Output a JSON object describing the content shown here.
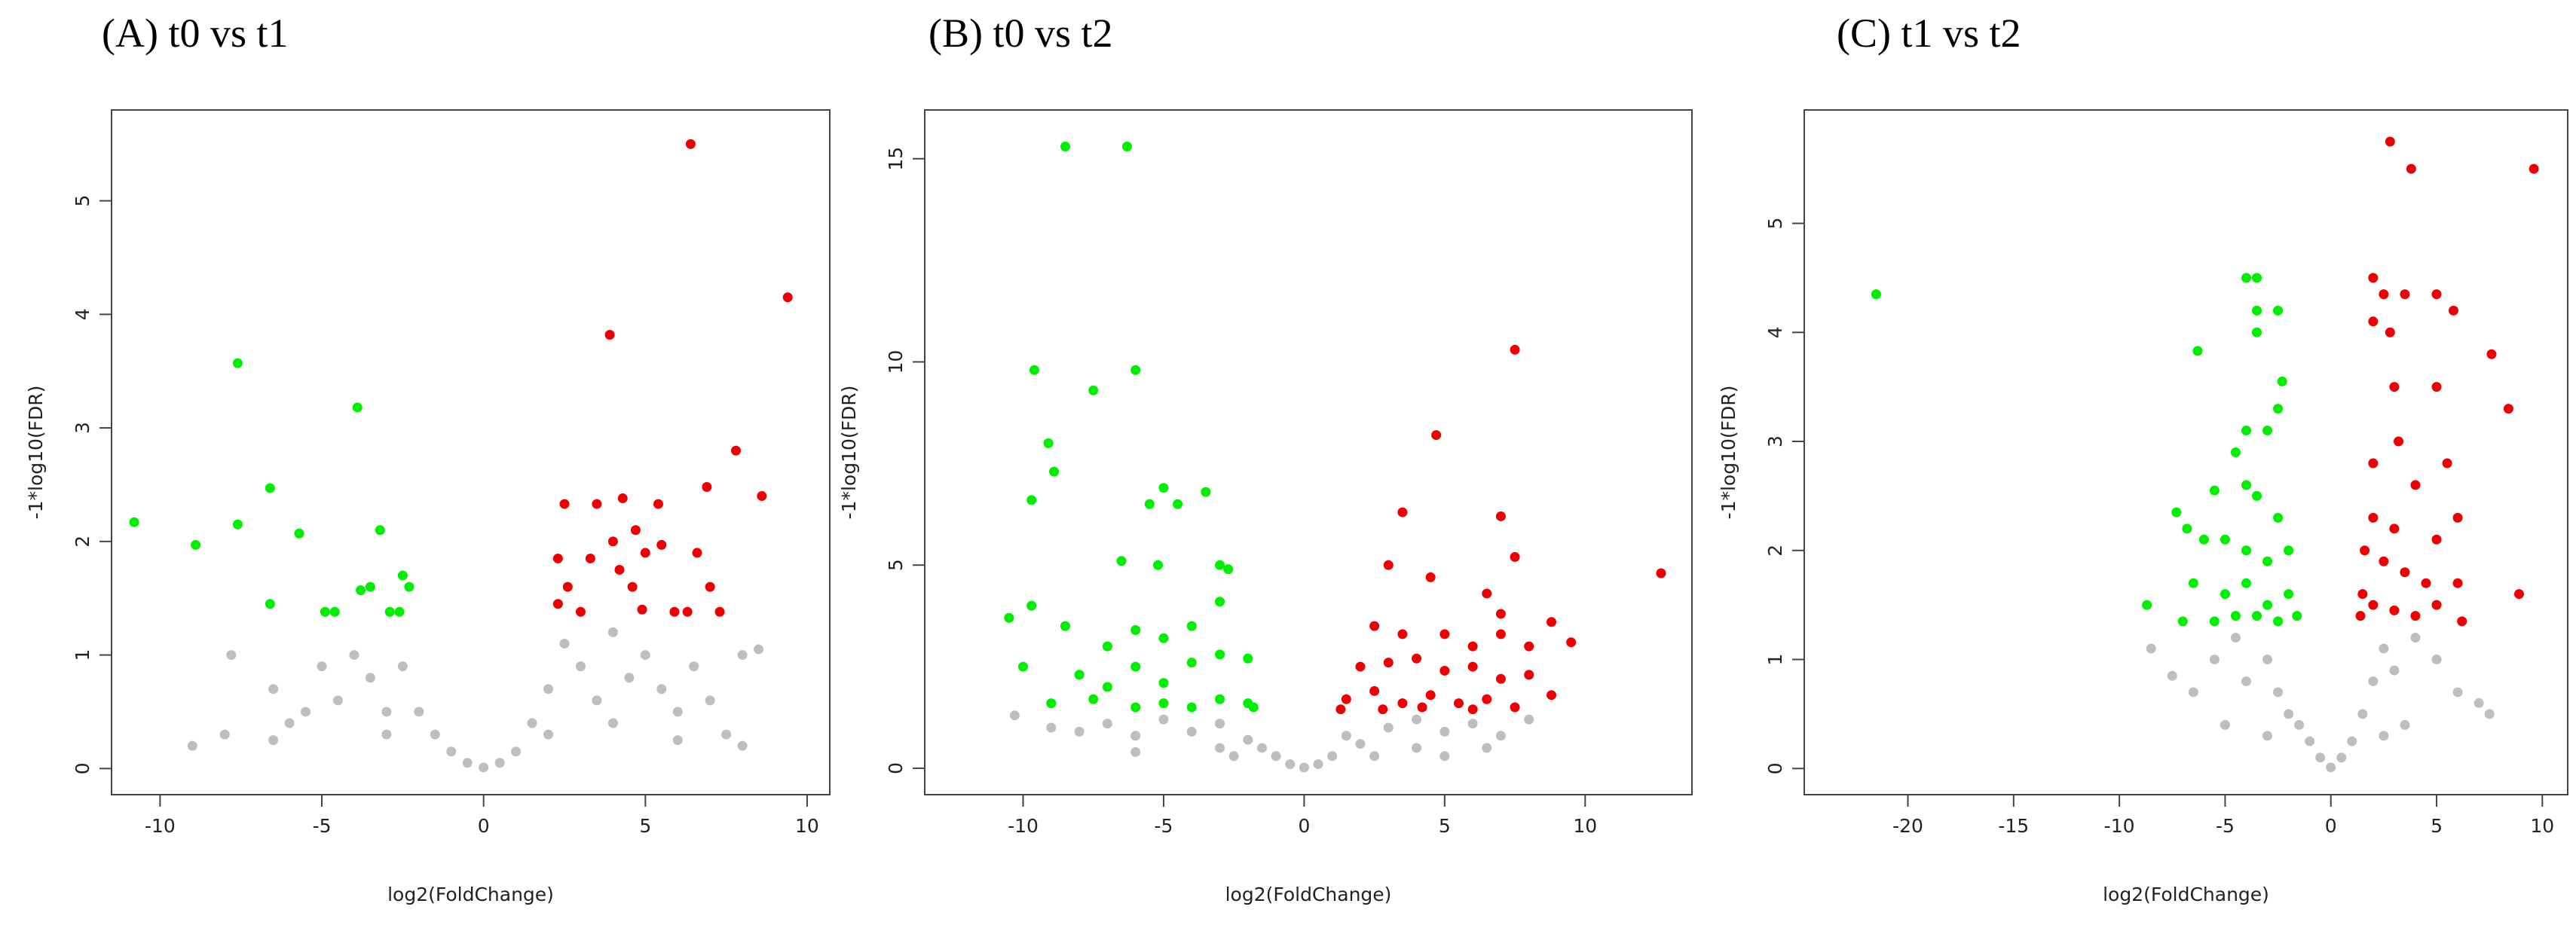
{
  "chart_data": [
    {
      "type": "scatter",
      "title": "(A) t0 vs t1",
      "xlabel": "log2(FoldChange)",
      "ylabel": "-1*log10(FDR)",
      "xlim": [
        -11.5,
        10.7
      ],
      "ylim": [
        -0.23,
        5.8
      ],
      "xticks": [
        -10,
        -5,
        0,
        5,
        10
      ],
      "yticks": [
        0,
        1,
        2,
        3,
        4,
        5
      ],
      "series": [
        {
          "color": "#bebebe",
          "x": [
            -7.8,
            -6.5,
            -6,
            -5,
            -4.5,
            -4,
            -3.5,
            -3,
            -2.5,
            -2,
            -1.5,
            -1,
            -0.5,
            0,
            0.5,
            1,
            1.5,
            2,
            2.5,
            3,
            3.5,
            4,
            4.5,
            5,
            5.5,
            6,
            6.5,
            7,
            7.5,
            8,
            8.5,
            -8,
            -9,
            -6.5,
            -5.5,
            -3,
            2,
            4,
            6,
            8
          ],
          "values": [
            1.0,
            0.7,
            0.4,
            0.9,
            0.6,
            1.0,
            0.8,
            0.5,
            0.9,
            0.5,
            0.3,
            0.15,
            0.05,
            0.01,
            0.05,
            0.15,
            0.4,
            0.7,
            1.1,
            0.9,
            0.6,
            1.2,
            0.8,
            1.0,
            0.7,
            0.5,
            0.9,
            0.6,
            0.3,
            1.0,
            1.05,
            0.3,
            0.2,
            0.25,
            0.5,
            0.3,
            0.3,
            0.4,
            0.25,
            0.2
          ]
        },
        {
          "color": "#00ee00",
          "x": [
            -10.8,
            -8.9,
            -7.6,
            -7.6,
            -6.6,
            -6.6,
            -5.7,
            -4.9,
            -4.6,
            -3.9,
            -3.8,
            -3.5,
            -3.2,
            -2.9,
            -2.6,
            -2.5,
            -2.3
          ],
          "values": [
            2.17,
            1.97,
            3.57,
            2.15,
            2.47,
            1.45,
            2.07,
            1.38,
            1.38,
            3.18,
            1.57,
            1.6,
            2.1,
            1.38,
            1.38,
            1.7,
            1.6
          ]
        },
        {
          "color": "#ee0000",
          "x": [
            6.4,
            9.4,
            3.9,
            7.8,
            2.5,
            3.5,
            4.3,
            5.4,
            6.9,
            8.6,
            2.3,
            3.3,
            4.0,
            4.7,
            5.0,
            5.5,
            6.6,
            2.3,
            2.6,
            3.0,
            4.2,
            4.6,
            4.9,
            5.9,
            6.3,
            7.0,
            7.3
          ],
          "values": [
            5.5,
            4.15,
            3.82,
            2.8,
            2.33,
            2.33,
            2.38,
            2.33,
            2.48,
            2.4,
            1.85,
            1.85,
            2.0,
            2.1,
            1.9,
            1.97,
            1.9,
            1.45,
            1.6,
            1.38,
            1.75,
            1.6,
            1.4,
            1.38,
            1.38,
            1.6,
            1.38
          ]
        }
      ]
    },
    {
      "type": "scatter",
      "title": "(B) t0 vs t2",
      "xlabel": "log2(FoldChange)",
      "ylabel": "-1*log10(FDR)",
      "xlim": [
        -13.5,
        13.8
      ],
      "ylim": [
        -0.65,
        16.2
      ],
      "xticks": [
        -10,
        -5,
        0,
        5,
        10
      ],
      "yticks": [
        0,
        5,
        10,
        15
      ],
      "series": [
        {
          "color": "#bebebe",
          "x": [
            -10.3,
            -9,
            -8,
            -7,
            -6,
            -5,
            -4,
            -3,
            -2,
            -1.5,
            -1,
            -0.5,
            0,
            0.5,
            1,
            1.5,
            2,
            3,
            4,
            5,
            6,
            7,
            8,
            6.5,
            4,
            -6,
            -3,
            2.5,
            -2.5,
            5
          ],
          "values": [
            1.3,
            1.0,
            0.9,
            1.1,
            0.8,
            1.2,
            0.9,
            1.1,
            0.7,
            0.5,
            0.3,
            0.1,
            0.02,
            0.1,
            0.3,
            0.8,
            0.6,
            1.0,
            1.2,
            0.9,
            1.1,
            0.8,
            1.2,
            0.5,
            0.5,
            0.4,
            0.5,
            0.3,
            0.3,
            0.3
          ]
        },
        {
          "color": "#00ee00",
          "x": [
            -8.5,
            -6.3,
            -9.6,
            -6,
            -7.5,
            -9.1,
            -8.9,
            -9.7,
            -5,
            -5.5,
            -4.5,
            -3.5,
            -6.5,
            -5.2,
            -3,
            -2.7,
            -10.5,
            -9.7,
            -8.5,
            -7,
            -6,
            -5,
            -4,
            -3,
            -10,
            -8,
            -7,
            -6,
            -5,
            -4,
            -3,
            -2,
            -9,
            -7.5,
            -6,
            -5,
            -4,
            -3,
            -2,
            -1.8
          ],
          "values": [
            15.3,
            15.3,
            9.8,
            9.8,
            9.3,
            8,
            7.3,
            6.6,
            6.9,
            6.5,
            6.5,
            6.8,
            5.1,
            5.0,
            5.0,
            4.9,
            3.7,
            4.0,
            3.5,
            3.0,
            3.4,
            3.2,
            3.5,
            4.1,
            2.5,
            2.3,
            2.0,
            2.5,
            2.1,
            2.6,
            2.8,
            2.7,
            1.6,
            1.7,
            1.5,
            1.6,
            1.5,
            1.7,
            1.6,
            1.5
          ]
        },
        {
          "color": "#ee0000",
          "x": [
            7.5,
            4.7,
            12.7,
            3.5,
            7,
            7.5,
            3,
            4.5,
            6.5,
            7,
            8.8,
            9.5,
            2.5,
            3.5,
            5,
            6,
            7,
            8,
            2,
            3,
            4,
            5,
            6,
            7,
            8,
            8.8,
            1.5,
            2.5,
            3.5,
            4.5,
            5.5,
            6.5,
            7.5,
            1.3,
            2.8,
            4.2,
            6
          ],
          "values": [
            10.3,
            8.2,
            4.8,
            6.3,
            6.2,
            5.2,
            5.0,
            4.7,
            4.3,
            3.8,
            3.6,
            3.1,
            3.5,
            3.3,
            3.3,
            3.0,
            3.3,
            3.0,
            2.5,
            2.6,
            2.7,
            2.4,
            2.5,
            2.2,
            2.3,
            1.8,
            1.7,
            1.9,
            1.6,
            1.8,
            1.6,
            1.7,
            1.5,
            1.45,
            1.45,
            1.5,
            1.45
          ]
        }
      ]
    },
    {
      "type": "scatter",
      "title": "(C) t1 vs t2",
      "xlabel": "log2(FoldChange)",
      "ylabel": "-1*log10(FDR)",
      "xlim": [
        -24.9,
        11.2
      ],
      "ylim": [
        -0.24,
        6.04
      ],
      "xticks": [
        -20,
        -15,
        -10,
        -5,
        0,
        5,
        10
      ],
      "yticks": [
        0,
        1,
        2,
        3,
        4,
        5
      ],
      "series": [
        {
          "color": "#bebebe",
          "x": [
            -8.5,
            -7.5,
            -6.5,
            -5.5,
            -4.5,
            -4,
            -3,
            -2.5,
            -2,
            -1.5,
            -1,
            -0.5,
            0,
            0.5,
            1,
            1.5,
            2,
            2.5,
            3,
            4,
            5,
            6,
            7,
            7.5,
            -3,
            2.5,
            3.5,
            -5
          ],
          "values": [
            1.1,
            0.85,
            0.7,
            1.0,
            1.2,
            0.8,
            1.0,
            0.7,
            0.5,
            0.4,
            0.25,
            0.1,
            0.01,
            0.1,
            0.25,
            0.5,
            0.8,
            1.1,
            0.9,
            1.2,
            1.0,
            0.7,
            0.6,
            0.5,
            0.3,
            0.3,
            0.4,
            0.4
          ]
        },
        {
          "color": "#00ee00",
          "x": [
            -21.5,
            -6.3,
            -4,
            -3.5,
            -2.5,
            -3.5,
            -3.5,
            -2.3,
            -2.5,
            -4,
            -3,
            -4.5,
            -4,
            -5.5,
            -3.5,
            -2.5,
            -7.3,
            -6.8,
            -6,
            -5,
            -4,
            -3,
            -2,
            -6.5,
            -5,
            -4,
            -3,
            -2,
            -8.7,
            -7,
            -5.5,
            -4.5,
            -3.5,
            -2.5,
            -1.6
          ],
          "values": [
            4.35,
            3.83,
            4.5,
            4.5,
            4.2,
            4.2,
            4.0,
            3.55,
            3.3,
            3.1,
            3.1,
            2.9,
            2.6,
            2.55,
            2.5,
            2.3,
            2.35,
            2.2,
            2.1,
            2.1,
            2.0,
            1.9,
            2.0,
            1.7,
            1.6,
            1.7,
            1.5,
            1.6,
            1.5,
            1.35,
            1.35,
            1.4,
            1.4,
            1.35,
            1.4
          ]
        },
        {
          "color": "#ee0000",
          "x": [
            2.8,
            3.8,
            9.6,
            2,
            2.5,
            3.5,
            5,
            5.8,
            2,
            2.8,
            7.6,
            3,
            5,
            8.4,
            3.2,
            5.5,
            2,
            4,
            6,
            2,
            3,
            5,
            1.6,
            2.5,
            3.5,
            4.5,
            6,
            8.9,
            1.5,
            2,
            3,
            4,
            5,
            6.2,
            1.4
          ],
          "values": [
            5.75,
            5.5,
            5.5,
            4.5,
            4.35,
            4.35,
            4.35,
            4.2,
            4.1,
            4.0,
            3.8,
            3.5,
            3.5,
            3.3,
            3.0,
            2.8,
            2.8,
            2.6,
            2.3,
            2.3,
            2.2,
            2.1,
            2.0,
            1.9,
            1.8,
            1.7,
            1.7,
            1.6,
            1.6,
            1.5,
            1.45,
            1.4,
            1.5,
            1.35,
            1.4
          ]
        }
      ]
    }
  ]
}
